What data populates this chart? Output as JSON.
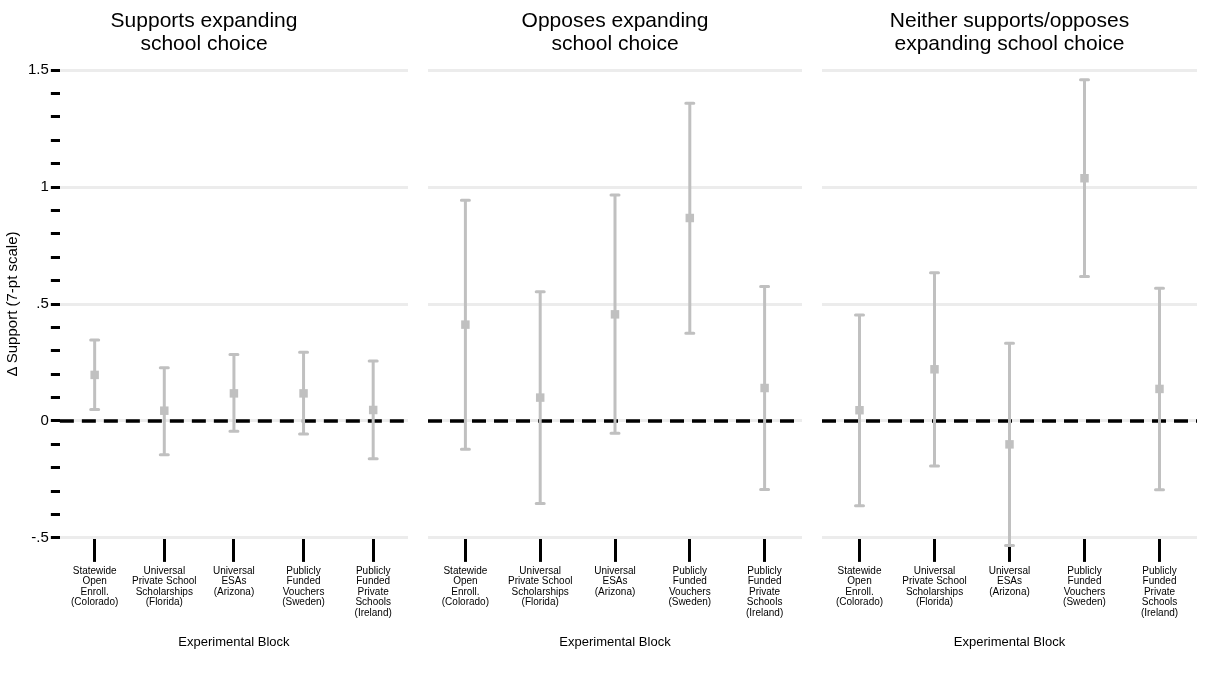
{
  "chart_data": [
    {
      "type": "scatter",
      "title": "Supports expanding\nschool choice",
      "xlabel": "Experimental Block",
      "ylabel": "Δ Support (7-pt scale)",
      "categories": [
        "Statewide\nOpen\nEnroll.\n(Colorado)",
        "Universal\nPrivate School\nScholarships\n(Florida)",
        "Universal\nESAs\n(Arizona)",
        "Publicly\nFunded\nVouchers\n(Sweden)",
        "Publicly\nFunded\nPrivate\nSchools\n(Ireland)"
      ],
      "series": [
        {
          "color": "#c0c0c0",
          "values": [
            0.197,
            0.044,
            0.118,
            0.118,
            0.047
          ],
          "errors": [
            [
              0.049,
              0.346
            ],
            [
              -0.144,
              0.228
            ],
            [
              -0.044,
              0.284
            ],
            [
              -0.056,
              0.294
            ],
            [
              -0.162,
              0.257
            ]
          ]
        }
      ],
      "marker": "square",
      "grid": "y",
      "ref_lines": [
        {
          "axis": "y",
          "value": 0,
          "color": "#000000",
          "line_style": "dashed"
        }
      ],
      "ylim": [
        -0.5,
        1.5
      ],
      "yticks": [
        {
          "value": -0.5,
          "label": "-.5"
        },
        {
          "value": -0.4,
          "label": null
        },
        {
          "value": -0.3,
          "label": null
        },
        {
          "value": -0.2,
          "label": null
        },
        {
          "value": -0.1,
          "label": null
        },
        0,
        {
          "value": 0.1,
          "label": null
        },
        {
          "value": 0.2,
          "label": null
        },
        {
          "value": 0.3,
          "label": null
        },
        {
          "value": 0.4,
          "label": null
        },
        {
          "value": 0.5,
          "label": ".5"
        },
        {
          "value": 0.6,
          "label": null
        },
        {
          "value": 0.7,
          "label": null
        },
        {
          "value": 0.8,
          "label": null
        },
        {
          "value": 0.9,
          "label": null
        },
        1,
        {
          "value": 1.1,
          "label": null
        },
        {
          "value": 1.2,
          "label": null
        },
        {
          "value": 1.3,
          "label": null
        },
        {
          "value": 1.4,
          "label": null
        },
        {
          "value": 1.5,
          "label": "1.5"
        }
      ]
    },
    {
      "type": "scatter",
      "title": "Opposes expanding\nschool choice",
      "xlabel": "Experimental Block",
      "categories": [
        "Statewide\nOpen\nEnroll.\n(Colorado)",
        "Universal\nPrivate School\nScholarships\n(Florida)",
        "Universal\nESAs\n(Arizona)",
        "Publicly\nFunded\nVouchers\n(Sweden)",
        "Publicly\nFunded\nPrivate\nSchools\n(Ireland)"
      ],
      "series": [
        {
          "color": "#c0c0c0",
          "values": [
            0.412,
            0.1,
            0.456,
            0.868,
            0.141
          ],
          "errors": [
            [
              -0.121,
              0.944
            ],
            [
              -0.353,
              0.553
            ],
            [
              -0.053,
              0.966
            ],
            [
              0.375,
              1.359
            ],
            [
              -0.293,
              0.575
            ]
          ]
        }
      ],
      "marker": "square",
      "grid": "y",
      "ref_lines": [
        {
          "axis": "y",
          "value": 0,
          "color": "#000000",
          "line_style": "dashed"
        }
      ],
      "tick_labels": "x",
      "yticks": [
        -0.5,
        0,
        0.5,
        1,
        1.5
      ]
    },
    {
      "type": "scatter",
      "title": "Neither supports/opposes\nexpanding school choice",
      "xlabel": "Experimental Block",
      "categories": [
        "Statewide\nOpen\nEnroll.\n(Colorado)",
        "Universal\nPrivate School\nScholarships\n(Florida)",
        "Universal\nESAs\n(Arizona)",
        "Publicly\nFunded\nVouchers\n(Sweden)",
        "Publicly\nFunded\nPrivate\nSchools\n(Ireland)"
      ],
      "series": [
        {
          "color": "#c0c0c0",
          "values": [
            0.046,
            0.221,
            -0.1,
            1.038,
            0.137
          ],
          "errors": [
            [
              -0.363,
              0.453
            ],
            [
              -0.193,
              0.634
            ],
            [
              -0.532,
              0.332
            ],
            [
              0.618,
              1.459
            ],
            [
              -0.294,
              0.568
            ]
          ]
        }
      ],
      "marker": "square",
      "grid": "y",
      "ref_lines": [
        {
          "axis": "y",
          "value": 0,
          "color": "#000000",
          "line_style": "dashed"
        }
      ],
      "tick_labels": "x",
      "yticks": [
        -0.5,
        0,
        0.5,
        1,
        1.5
      ]
    }
  ]
}
